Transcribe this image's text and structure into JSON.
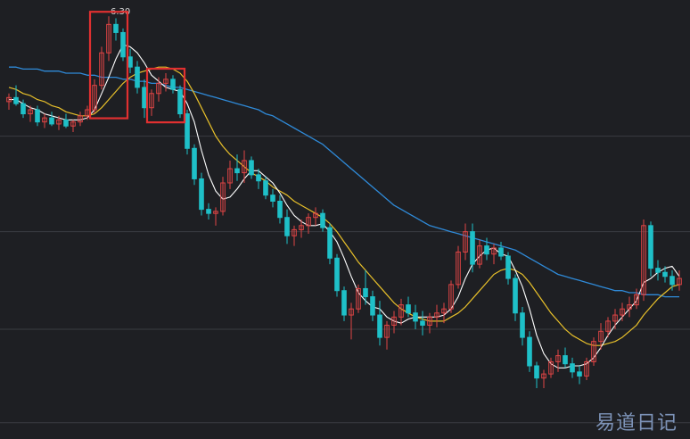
{
  "chart_data": {
    "type": "candlestick",
    "title": "",
    "grid": true,
    "colors": {
      "background": "#1e1f23",
      "grid": "#3a3c42",
      "up": "#e04545",
      "down": "#1fc0c8",
      "ma_short": "#ffffff",
      "ma_mid": "#e8c02a",
      "ma_long": "#2f8ad8",
      "highlight_box": "#e03030"
    },
    "peak_label": "6.30",
    "highlight_boxes": 2,
    "watermark": "易道日记",
    "candles": [
      [
        5.88,
        5.92,
        5.84,
        5.9
      ],
      [
        5.9,
        5.96,
        5.86,
        5.87
      ],
      [
        5.87,
        5.89,
        5.8,
        5.82
      ],
      [
        5.82,
        5.86,
        5.78,
        5.84
      ],
      [
        5.84,
        5.86,
        5.76,
        5.78
      ],
      [
        5.78,
        5.82,
        5.75,
        5.8
      ],
      [
        5.8,
        5.83,
        5.76,
        5.77
      ],
      [
        5.77,
        5.81,
        5.74,
        5.79
      ],
      [
        5.79,
        5.82,
        5.75,
        5.76
      ],
      [
        5.76,
        5.79,
        5.73,
        5.78
      ],
      [
        5.78,
        5.83,
        5.76,
        5.81
      ],
      [
        5.81,
        5.86,
        5.79,
        5.84
      ],
      [
        5.84,
        5.99,
        5.82,
        5.96
      ],
      [
        5.96,
        6.15,
        5.94,
        6.12
      ],
      [
        6.12,
        6.3,
        6.08,
        6.26
      ],
      [
        6.26,
        6.29,
        6.18,
        6.22
      ],
      [
        6.22,
        6.24,
        6.08,
        6.1
      ],
      [
        6.1,
        6.14,
        6.02,
        6.05
      ],
      [
        6.05,
        6.08,
        5.92,
        5.95
      ],
      [
        5.95,
        5.99,
        5.8,
        5.85
      ],
      [
        5.85,
        5.94,
        5.81,
        5.92
      ],
      [
        5.92,
        6.0,
        5.88,
        5.97
      ],
      [
        5.97,
        6.02,
        5.93,
        5.99
      ],
      [
        5.99,
        6.01,
        5.92,
        5.94
      ],
      [
        5.94,
        5.96,
        5.8,
        5.82
      ],
      [
        5.82,
        5.84,
        5.62,
        5.65
      ],
      [
        5.65,
        5.67,
        5.47,
        5.5
      ],
      [
        5.5,
        5.53,
        5.32,
        5.35
      ],
      [
        5.35,
        5.38,
        5.3,
        5.33
      ],
      [
        5.33,
        5.36,
        5.27,
        5.34
      ],
      [
        5.34,
        5.51,
        5.32,
        5.48
      ],
      [
        5.48,
        5.59,
        5.45,
        5.55
      ],
      [
        5.55,
        5.62,
        5.49,
        5.53
      ],
      [
        5.53,
        5.64,
        5.48,
        5.59
      ],
      [
        5.59,
        5.61,
        5.5,
        5.52
      ],
      [
        5.52,
        5.55,
        5.45,
        5.49
      ],
      [
        5.49,
        5.51,
        5.4,
        5.42
      ],
      [
        5.42,
        5.45,
        5.36,
        5.39
      ],
      [
        5.39,
        5.42,
        5.28,
        5.31
      ],
      [
        5.31,
        5.35,
        5.18,
        5.22
      ],
      [
        5.22,
        5.27,
        5.17,
        5.25
      ],
      [
        5.25,
        5.3,
        5.21,
        5.27
      ],
      [
        5.27,
        5.33,
        5.23,
        5.31
      ],
      [
        5.31,
        5.36,
        5.27,
        5.33
      ],
      [
        5.33,
        5.35,
        5.24,
        5.26
      ],
      [
        5.26,
        5.28,
        5.08,
        5.11
      ],
      [
        5.11,
        5.13,
        4.92,
        4.95
      ],
      [
        4.95,
        4.97,
        4.8,
        4.83
      ],
      [
        4.83,
        4.89,
        4.71,
        4.86
      ],
      [
        4.86,
        4.98,
        4.84,
        4.96
      ],
      [
        4.96,
        5.05,
        4.88,
        4.92
      ],
      [
        4.92,
        4.95,
        4.8,
        4.83
      ],
      [
        4.83,
        4.9,
        4.68,
        4.72
      ],
      [
        4.72,
        4.8,
        4.66,
        4.78
      ],
      [
        4.78,
        4.85,
        4.74,
        4.82
      ],
      [
        4.82,
        4.91,
        4.78,
        4.88
      ],
      [
        4.88,
        4.92,
        4.82,
        4.84
      ],
      [
        4.84,
        4.88,
        4.76,
        4.8
      ],
      [
        4.8,
        4.85,
        4.73,
        4.78
      ],
      [
        4.78,
        4.84,
        4.74,
        4.82
      ],
      [
        4.82,
        4.88,
        4.77,
        4.84
      ],
      [
        4.84,
        4.89,
        4.79,
        4.86
      ],
      [
        4.86,
        5.0,
        4.84,
        4.98
      ],
      [
        4.98,
        5.17,
        4.96,
        5.14
      ],
      [
        5.14,
        5.28,
        5.1,
        5.24
      ],
      [
        5.24,
        5.28,
        5.04,
        5.08
      ],
      [
        5.08,
        5.2,
        5.06,
        5.17
      ],
      [
        5.17,
        5.21,
        5.1,
        5.13
      ],
      [
        5.13,
        5.18,
        5.08,
        5.16
      ],
      [
        5.16,
        5.19,
        5.1,
        5.12
      ],
      [
        5.12,
        5.14,
        4.98,
        5.01
      ],
      [
        5.01,
        5.03,
        4.8,
        4.84
      ],
      [
        4.84,
        4.87,
        4.68,
        4.72
      ],
      [
        4.72,
        4.75,
        4.55,
        4.58
      ],
      [
        4.58,
        4.6,
        4.47,
        4.52
      ],
      [
        4.52,
        4.56,
        4.47,
        4.54
      ],
      [
        4.54,
        4.62,
        4.52,
        4.6
      ],
      [
        4.6,
        4.66,
        4.55,
        4.63
      ],
      [
        4.63,
        4.67,
        4.57,
        4.59
      ],
      [
        4.59,
        4.62,
        4.52,
        4.55
      ],
      [
        4.55,
        4.58,
        4.49,
        4.53
      ],
      [
        4.53,
        4.62,
        4.51,
        4.6
      ],
      [
        4.6,
        4.72,
        4.58,
        4.7
      ],
      [
        4.7,
        4.79,
        4.66,
        4.75
      ],
      [
        4.75,
        4.82,
        4.72,
        4.8
      ],
      [
        4.8,
        4.86,
        4.76,
        4.83
      ],
      [
        4.83,
        4.89,
        4.8,
        4.86
      ],
      [
        4.86,
        4.92,
        4.82,
        4.88
      ],
      [
        4.88,
        4.96,
        4.86,
        4.93
      ],
      [
        4.93,
        5.3,
        4.9,
        5.27
      ],
      [
        5.27,
        5.29,
        5.02,
        5.06
      ],
      [
        5.06,
        5.1,
        5.0,
        5.04
      ],
      [
        5.04,
        5.07,
        4.99,
        5.02
      ],
      [
        5.02,
        5.05,
        4.95,
        4.98
      ],
      [
        4.98,
        5.05,
        4.95,
        5.01
      ]
    ],
    "ma_short": [
      5.89,
      5.89,
      5.87,
      5.85,
      5.84,
      5.82,
      5.81,
      5.8,
      5.79,
      5.79,
      5.79,
      5.8,
      5.84,
      5.92,
      6.0,
      6.09,
      6.16,
      6.15,
      6.12,
      6.07,
      6.01,
      5.98,
      5.95,
      5.94,
      5.93,
      5.87,
      5.78,
      5.64,
      5.52,
      5.44,
      5.4,
      5.41,
      5.45,
      5.5,
      5.54,
      5.54,
      5.51,
      5.48,
      5.43,
      5.37,
      5.32,
      5.29,
      5.27,
      5.27,
      5.28,
      5.24,
      5.19,
      5.11,
      5.02,
      4.94,
      4.9,
      4.87,
      4.86,
      4.82,
      4.8,
      4.79,
      4.81,
      4.82,
      4.82,
      4.82,
      4.82,
      4.83,
      4.86,
      4.92,
      5.01,
      5.08,
      5.12,
      5.15,
      5.16,
      5.13,
      5.12,
      5.05,
      4.97,
      4.86,
      4.73,
      4.64,
      4.59,
      4.57,
      4.57,
      4.58,
      4.58,
      4.59,
      4.62,
      4.67,
      4.73,
      4.78,
      4.82,
      4.86,
      4.9,
      4.99,
      5.01,
      5.04,
      5.06,
      5.07,
      5.02
    ],
    "ma_mid": [
      5.95,
      5.94,
      5.92,
      5.91,
      5.89,
      5.88,
      5.86,
      5.85,
      5.83,
      5.82,
      5.81,
      5.81,
      5.82,
      5.85,
      5.89,
      5.93,
      5.97,
      6.0,
      6.02,
      6.03,
      6.04,
      6.05,
      6.05,
      6.04,
      6.02,
      5.98,
      5.92,
      5.85,
      5.78,
      5.71,
      5.66,
      5.62,
      5.59,
      5.56,
      5.53,
      5.51,
      5.49,
      5.46,
      5.44,
      5.42,
      5.39,
      5.37,
      5.35,
      5.33,
      5.31,
      5.28,
      5.24,
      5.19,
      5.14,
      5.09,
      5.05,
      5.01,
      4.97,
      4.93,
      4.89,
      4.86,
      4.84,
      4.82,
      4.81,
      4.8,
      4.8,
      4.8,
      4.82,
      4.84,
      4.87,
      4.91,
      4.95,
      4.99,
      5.03,
      5.05,
      5.06,
      5.05,
      5.03,
      4.99,
      4.94,
      4.89,
      4.84,
      4.8,
      4.76,
      4.73,
      4.71,
      4.69,
      4.68,
      4.68,
      4.69,
      4.7,
      4.72,
      4.75,
      4.78,
      4.83,
      4.87,
      4.91,
      4.94,
      4.97,
      4.98
    ],
    "ma_long": [
      6.05,
      6.05,
      6.04,
      6.04,
      6.04,
      6.03,
      6.03,
      6.03,
      6.02,
      6.02,
      6.02,
      6.01,
      6.01,
      6.0,
      6.0,
      6.0,
      5.99,
      5.99,
      5.98,
      5.98,
      5.97,
      5.97,
      5.96,
      5.95,
      5.95,
      5.94,
      5.93,
      5.92,
      5.91,
      5.9,
      5.89,
      5.88,
      5.87,
      5.86,
      5.85,
      5.84,
      5.82,
      5.81,
      5.79,
      5.77,
      5.75,
      5.73,
      5.71,
      5.69,
      5.67,
      5.64,
      5.61,
      5.58,
      5.55,
      5.52,
      5.49,
      5.46,
      5.43,
      5.4,
      5.37,
      5.35,
      5.33,
      5.31,
      5.29,
      5.27,
      5.26,
      5.25,
      5.24,
      5.23,
      5.22,
      5.21,
      5.2,
      5.19,
      5.18,
      5.17,
      5.16,
      5.15,
      5.13,
      5.11,
      5.09,
      5.07,
      5.05,
      5.03,
      5.02,
      5.01,
      5.0,
      4.99,
      4.98,
      4.97,
      4.96,
      4.95,
      4.95,
      4.94,
      4.94,
      4.93,
      4.93,
      4.93,
      4.92,
      4.92,
      4.92
    ],
    "ylim": [
      4.22,
      6.38
    ],
    "gridlines_y": [
      5.71,
      5.24,
      4.76,
      4.3
    ]
  }
}
